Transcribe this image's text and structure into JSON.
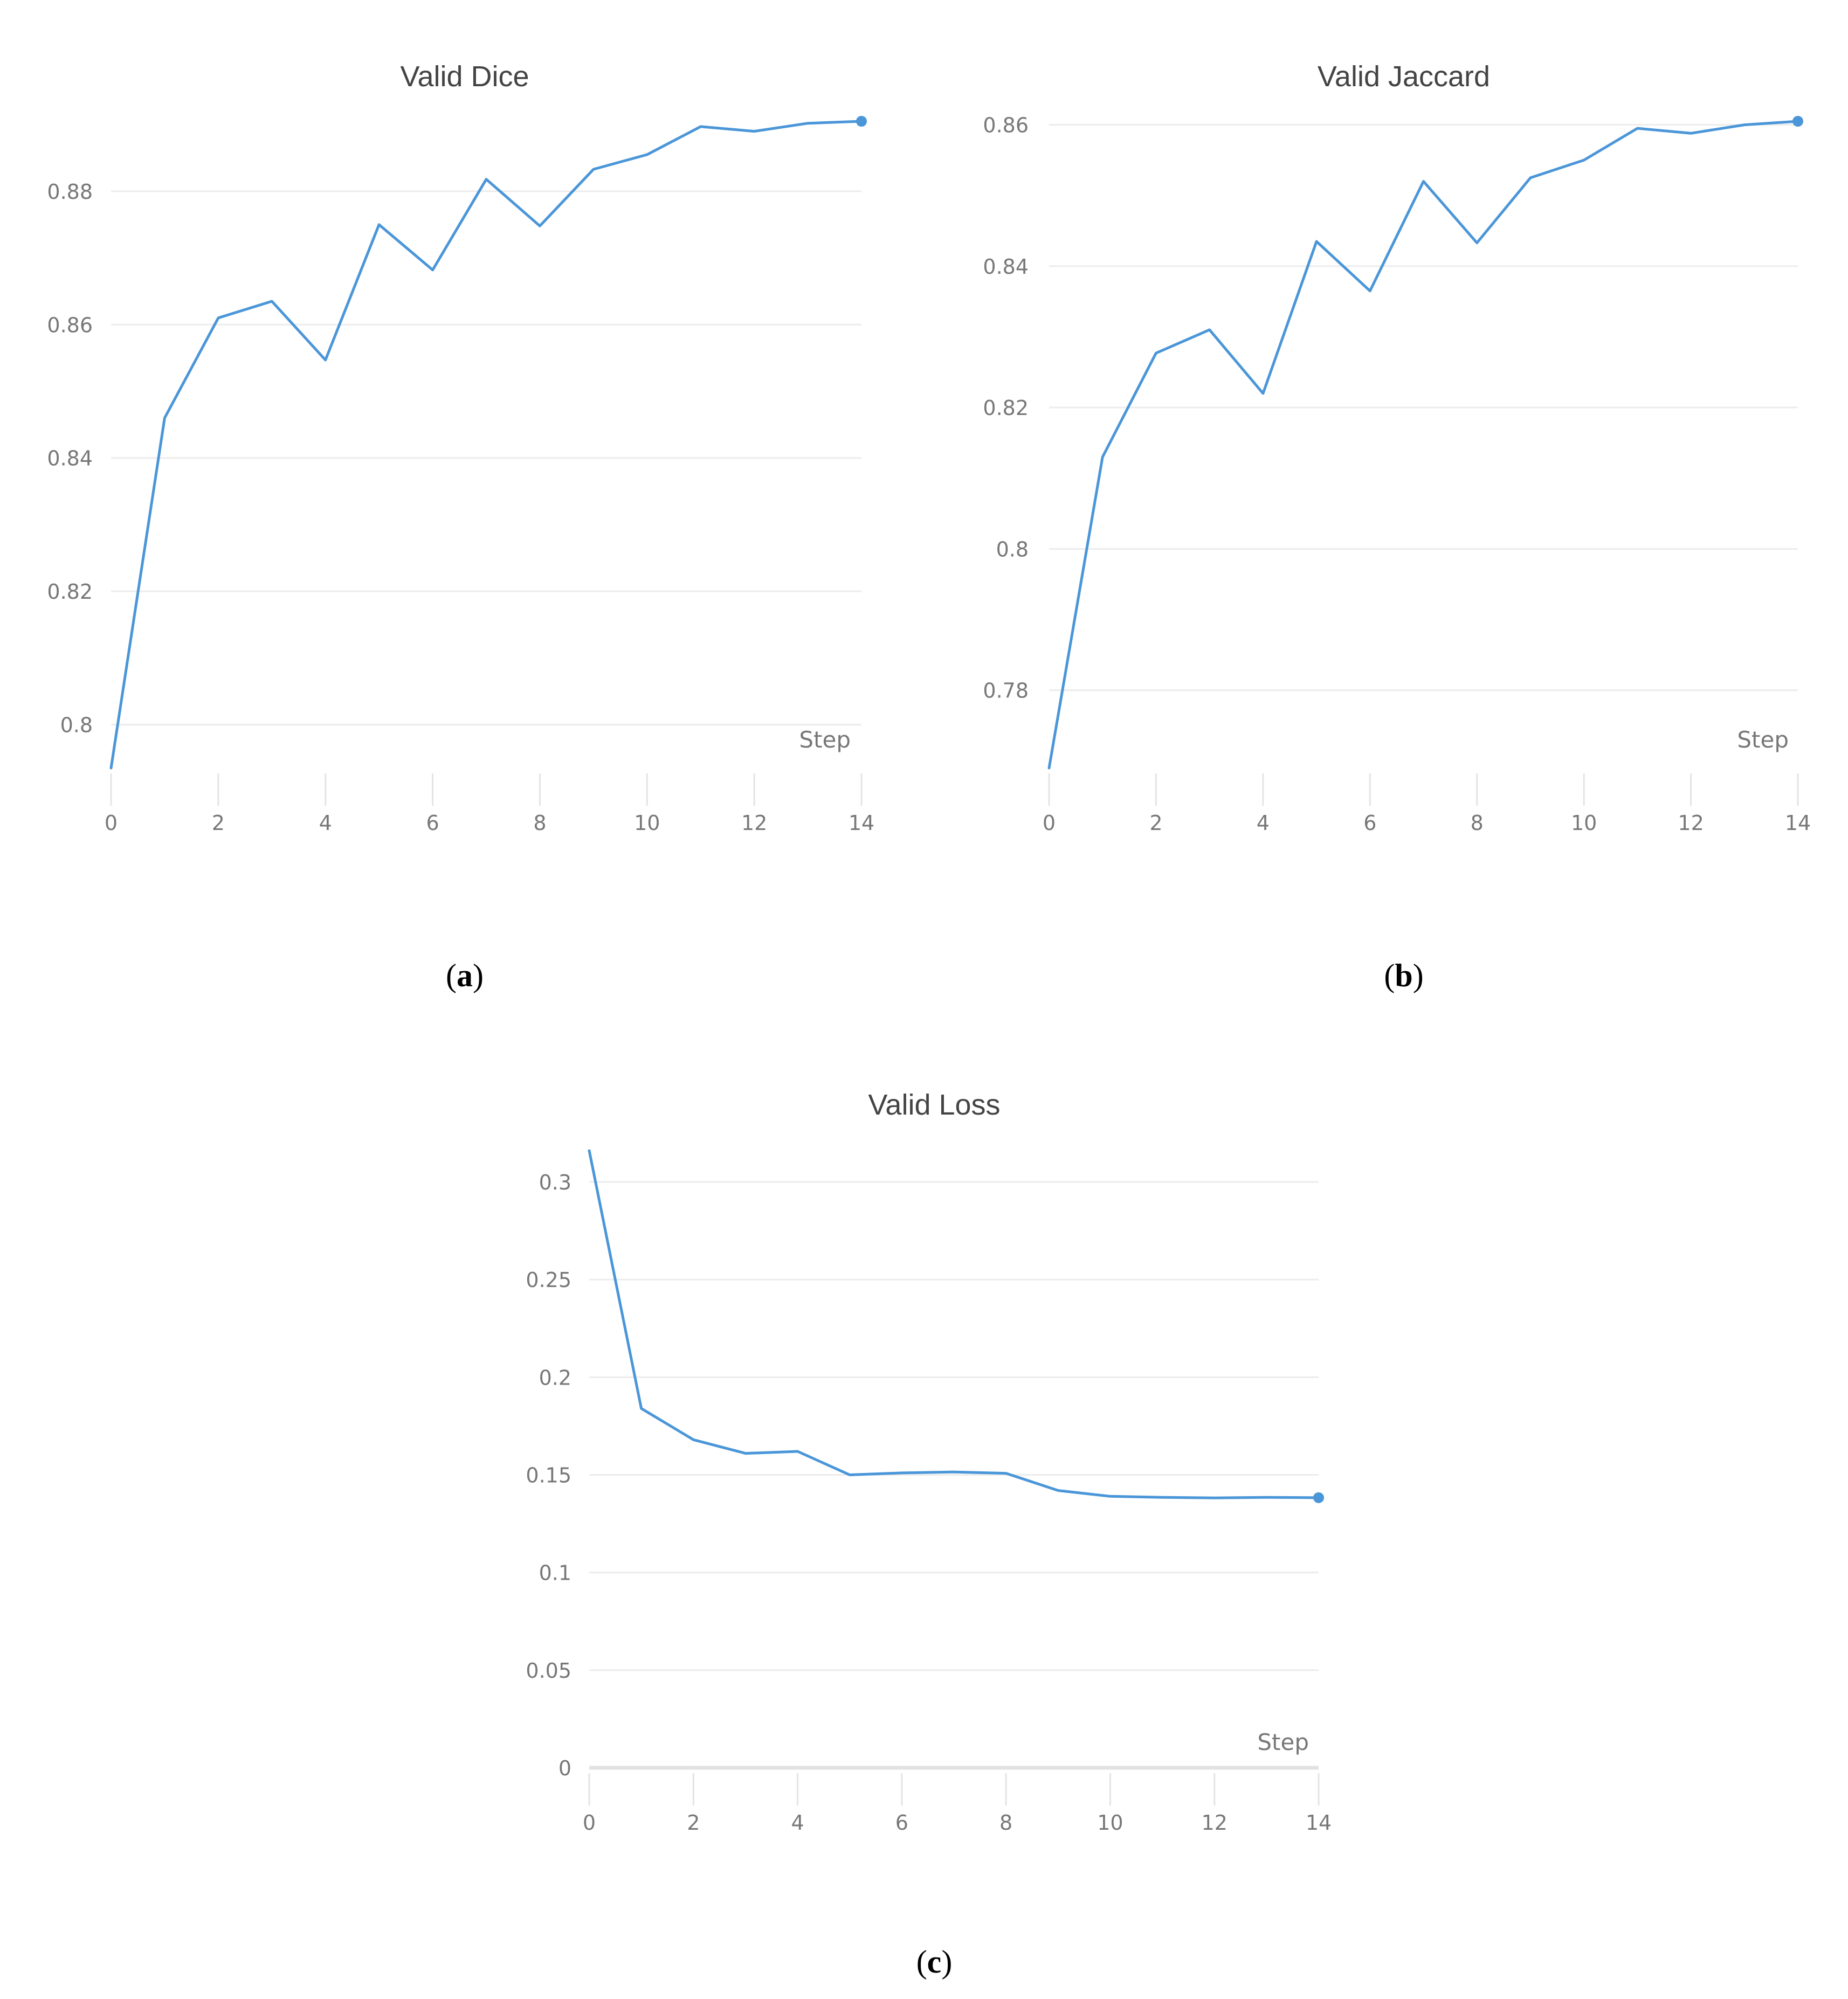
{
  "colors": {
    "line": "#4a96d8"
  },
  "chart_data": [
    {
      "type": "line",
      "title": "Valid Dice",
      "xlabel": "Step",
      "ylabel": "",
      "caption": "a",
      "x": [
        0,
        1,
        2,
        3,
        4,
        5,
        6,
        7,
        8,
        9,
        10,
        11,
        12,
        13,
        14
      ],
      "series": [
        {
          "values": [
            0.7935,
            0.846,
            0.861,
            0.8635,
            0.8547,
            0.875,
            0.8682,
            0.8818,
            0.8748,
            0.8833,
            0.8855,
            0.8897,
            0.889,
            0.8902,
            0.8905
          ]
        }
      ],
      "xticks": [
        0,
        2,
        4,
        6,
        8,
        10,
        12,
        14
      ],
      "xtick_labels": [
        "0",
        "2",
        "4",
        "6",
        "8",
        "10",
        "12",
        "14"
      ],
      "yticks": [
        0.8,
        0.82,
        0.84,
        0.86,
        0.88
      ],
      "ytick_labels": [
        "0.8",
        "0.82",
        "0.84",
        "0.86",
        "0.88"
      ],
      "xlim": [
        0,
        14
      ],
      "ylim": [
        0.7935,
        0.8905
      ],
      "grid": true
    },
    {
      "type": "line",
      "title": "Valid Jaccard",
      "xlabel": "Step",
      "ylabel": "",
      "caption": "b",
      "x": [
        0,
        1,
        2,
        3,
        4,
        5,
        6,
        7,
        8,
        9,
        10,
        11,
        12,
        13,
        14
      ],
      "series": [
        {
          "values": [
            0.769,
            0.813,
            0.8277,
            0.831,
            0.822,
            0.8435,
            0.8365,
            0.852,
            0.8433,
            0.8525,
            0.855,
            0.8595,
            0.8588,
            0.86,
            0.8605
          ]
        }
      ],
      "xticks": [
        0,
        2,
        4,
        6,
        8,
        10,
        12,
        14
      ],
      "xtick_labels": [
        "0",
        "2",
        "4",
        "6",
        "8",
        "10",
        "12",
        "14"
      ],
      "yticks": [
        0.78,
        0.8,
        0.82,
        0.84,
        0.86
      ],
      "ytick_labels": [
        "0.78",
        "0.8",
        "0.82",
        "0.84",
        "0.86"
      ],
      "xlim": [
        0,
        14
      ],
      "ylim": [
        0.769,
        0.8605
      ],
      "grid": true
    },
    {
      "type": "line",
      "title": "Valid Loss",
      "xlabel": "Step",
      "ylabel": "",
      "caption": "c",
      "x": [
        0,
        1,
        2,
        3,
        4,
        5,
        6,
        7,
        8,
        9,
        10,
        11,
        12,
        13,
        14
      ],
      "series": [
        {
          "values": [
            0.316,
            0.184,
            0.168,
            0.161,
            0.162,
            0.15,
            0.151,
            0.1515,
            0.1508,
            0.142,
            0.139,
            0.1385,
            0.1382,
            0.1385,
            0.1383
          ]
        }
      ],
      "xticks": [
        0,
        2,
        4,
        6,
        8,
        10,
        12,
        14
      ],
      "xtick_labels": [
        "0",
        "2",
        "4",
        "6",
        "8",
        "10",
        "12",
        "14"
      ],
      "yticks": [
        0,
        0.05,
        0.1,
        0.15,
        0.2,
        0.25,
        0.3
      ],
      "ytick_labels": [
        "0",
        "0.05",
        "0.1",
        "0.15",
        "0.2",
        "0.25",
        "0.3"
      ],
      "xlim": [
        0,
        14
      ],
      "ylim": [
        0,
        0.316
      ],
      "grid": true
    }
  ]
}
